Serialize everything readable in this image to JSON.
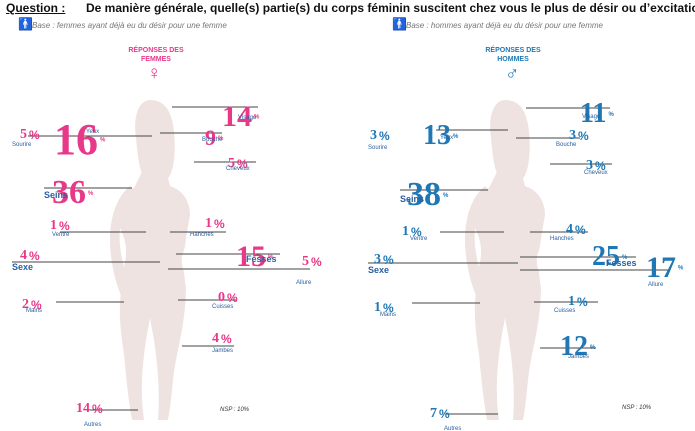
{
  "header": {
    "question_label": "Question :",
    "question_text": "De manière générale, quelle(s) partie(s) du corps féminin suscitent chez vous le plus de désir ou d’excitation ?",
    "base_women": "Base : femmes ayant déjà eu du désir pour une femme",
    "base_men": "Base : hommes ayant déjà eu du désir pour une femme",
    "person_icon": "person-icon"
  },
  "colors": {
    "women": "#e8388a",
    "men": "#1f78b4",
    "silhouette": "#efe3e1",
    "line": "#444444"
  },
  "chart_data": [
    {
      "type": "table",
      "title": "RÉPONSES DES FEMMES",
      "symbol": "♀",
      "unit": "%",
      "nsp": "NSP : 10%",
      "categories": [
        "Visage",
        "Yeux",
        "Bouche",
        "Sourire",
        "Cheveux",
        "Seins",
        "Ventre",
        "Hanches",
        "Fesses",
        "Sexe",
        "Allure",
        "Mains",
        "Cuisses",
        "Jambes",
        "Autres"
      ],
      "values": [
        14,
        16,
        9,
        5,
        5,
        36,
        1,
        1,
        15,
        4,
        5,
        2,
        0,
        4,
        14
      ]
    },
    {
      "type": "table",
      "title": "RÉPONSES DES HOMMES",
      "symbol": "♂",
      "unit": "%",
      "nsp": "NSP : 10%",
      "categories": [
        "Visage",
        "Yeux",
        "Bouche",
        "Sourire",
        "Cheveux",
        "Seins",
        "Ventre",
        "Hanches",
        "Fesses",
        "Sexe",
        "Allure",
        "Mains",
        "Cuisses",
        "Jambes",
        "Autres"
      ],
      "values": [
        11,
        13,
        3,
        3,
        3,
        38,
        1,
        4,
        25,
        3,
        17,
        1,
        1,
        12,
        7
      ]
    }
  ]
}
